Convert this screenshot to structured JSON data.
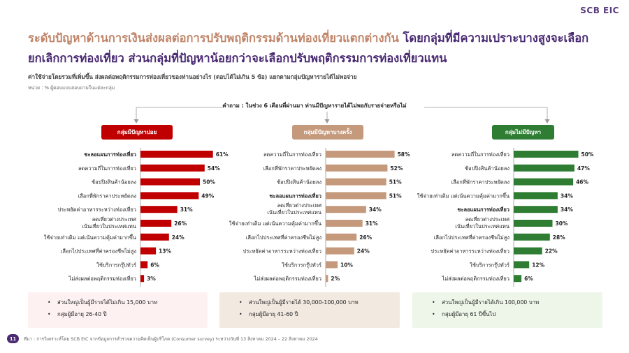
{
  "brand": "SCB EIC",
  "title": {
    "part1": "ระดับปัญหาด้านการเงินส่งผลต่อการปรับพฤติกรรมด้านท่องเที่ยวแตกต่างกัน",
    "part2": "โดยกลุ่มที่มีความเปราะบางสูงจะเลือกยกเลิกการท่องเที่ยว ส่วนกลุ่มที่ปัญหาน้อยกว่าจะเลือกปรับพฤติกรรมการท่องเที่ยวแทน"
  },
  "subtitle": "ค่าใช้จ่ายโดยรวมที่เพิ่มขึ้น ส่งผลต่อพฤติกรรมการท่องเที่ยวของท่านอย่างไร (ตอบได้ไม่เกิน 5 ข้อ) แยกตามกลุ่มปัญหารายได้ไม่พอจ่าย",
  "unit": "หน่วย : % ผู้ตอบแบบสอบถามในแต่ละกลุ่ม",
  "question": "คำถาม : ในช่วง 6 เดือนที่ผ่านมา ท่านมีปัญหารายได้ไม่พอกับรายจ่ายหรือไม่",
  "colors": {
    "red": "#c00000",
    "tan": "#c59a7c",
    "green": "#2e7d32",
    "purple": "#4a2a73"
  },
  "chart_data": [
    {
      "type": "bar",
      "orientation": "horizontal",
      "title": "กลุ่มมีปัญหาบ่อย",
      "color": "#c00000",
      "bold_first": true,
      "categories": [
        "ชะลอแผนการท่องเที่ยว",
        "ลดความถี่ในการท่องเที่ยว",
        "ช้อปปิงสินค้าน้อยลง",
        "เลือกที่พักราคาประหยัดลง",
        "ประหยัดค่าอาหารระหว่างท่องเที่ยว",
        "ลดเที่ยวต่างประเทศ|เน้นเที่ยวในประเทศแทน",
        "ใช้จ่ายเท่าเดิม แต่เน้นความคุ้มค่ามากขึ้น",
        "เลือกไปประเทศที่ค่าครองชีพไม่สูง",
        "ใช้บริการกรุ๊ปทัวร์",
        "ไม่ส่งผลต่อพฤติกรรมท่องเที่ยว"
      ],
      "values": [
        61,
        54,
        50,
        49,
        31,
        26,
        24,
        13,
        6,
        3
      ],
      "labels": [
        "61%",
        "54%",
        "50%",
        "49%",
        "31%",
        "26%",
        "24%",
        "13%",
        "6%",
        "3%"
      ]
    },
    {
      "type": "bar",
      "orientation": "horizontal",
      "title": "กลุ่มมีปัญหาบางครั้ง",
      "color": "#c59a7c",
      "bold_index": 3,
      "categories": [
        "ลดความถี่ในการท่องเที่ยว",
        "เลือกที่พักราคาประหยัดลง",
        "ช้อปปิงสินค้าน้อยลง",
        "ชะลอแผนการท่องเที่ยว",
        "ลดเที่ยวต่างประเทศ|เน้นเที่ยวในประเทศแทน",
        "ใช้จ่ายเท่าเดิม แต่เน้นความคุ้มค่ามากขึ้น",
        "เลือกไปประเทศที่ค่าครองชีพไม่สูง",
        "ประหยัดค่าอาหารระหว่างท่องเที่ยว",
        "ใช้บริการกรุ๊ปทัวร์",
        "ไม่ส่งผลต่อพฤติกรรมท่องเที่ยว"
      ],
      "values": [
        58,
        52,
        51,
        51,
        34,
        31,
        26,
        24,
        10,
        2
      ],
      "labels": [
        "58%",
        "52%",
        "51%",
        "51%",
        "34%",
        "31%",
        "26%",
        "24%",
        "10%",
        "2%"
      ]
    },
    {
      "type": "bar",
      "orientation": "horizontal",
      "title": "กลุ่มไม่มีปัญหา",
      "color": "#2e7d32",
      "bold_index": 4,
      "categories": [
        "ลดความถี่ในการท่องเที่ยว",
        "ช้อปปิงสินค้าน้อยลง",
        "เลือกที่พักราคาประหยัดลง",
        "ใช้จ่ายเท่าเดิม แต่เน้นความคุ้มค่ามากขึ้น",
        "ชะลอแผนการท่องเที่ยว",
        "ลดเที่ยวต่างประเทศ|เน้นเที่ยวในประเทศแทน",
        "เลือกไปประเทศที่ค่าครองชีพไม่สูง",
        "ประหยัดค่าอาหารระหว่างท่องเที่ยว",
        "ใช้บริการกรุ๊ปทัวร์",
        "ไม่ส่งผลต่อพฤติกรรมท่องเที่ยว"
      ],
      "values": [
        50,
        47,
        46,
        34,
        34,
        30,
        28,
        22,
        12,
        6
      ],
      "labels": [
        "50%",
        "47%",
        "46%",
        "34%",
        "34%",
        "30%",
        "28%",
        "22%",
        "12%",
        "6%"
      ]
    }
  ],
  "notes": [
    {
      "bg": "#fdf1f1",
      "items": [
        "ส่วนใหญ่เป็นผู้มีรายได้ไม่เกิน 15,000 บาท",
        "กลุ่มผู้มีอายุ 26-40 ปี"
      ]
    },
    {
      "bg": "#f2e9e1",
      "items": [
        "ส่วนใหญ่เป็นผู้มีรายได้ 30,000-100,000 บาท",
        "กลุ่มผู้มีอายุ 41-60 ปี"
      ]
    },
    {
      "bg": "#eef6e9",
      "items": [
        "ส่วนใหญ่เป็นผู้มีรายได้เกิน 100,000 บาท",
        "กลุ่มผู้มีอายุ 61 ปีขึ้นไป"
      ]
    }
  ],
  "footer": "ที่มา : การวิเคราะห์โดย SCB EIC จากข้อมูลการสำรวจความคิดเห็นผู้บริโภค (Consumer survey) ระหว่างวันที่ 13 สิงหาคม 2024 – 22 สิงหาคม 2024",
  "page_number": "11"
}
